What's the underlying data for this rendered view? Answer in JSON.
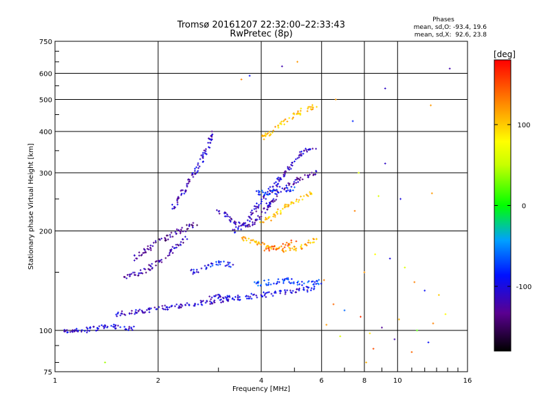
{
  "chart_data": {
    "type": "scatter",
    "title": "Tromsø 20161207 22:32:00–22:33:43",
    "subtitle": "RwPretec (8p)",
    "xlabel": "Frequency [MHz]",
    "ylabel": "Stationary phase Virtual Height [km]",
    "x_scale": "log",
    "y_scale": "log",
    "xlim": [
      1,
      16
    ],
    "ylim": [
      75,
      750
    ],
    "x_ticks": [
      1,
      2,
      4,
      6,
      8,
      10,
      16
    ],
    "x_tick_labels": [
      "1",
      "2",
      "4",
      "6",
      "8",
      "10",
      "16"
    ],
    "y_ticks": [
      75,
      100,
      200,
      300,
      400,
      500,
      600,
      750
    ],
    "y_tick_labels": [
      "75",
      "100",
      "200",
      "300",
      "400",
      "500",
      "600",
      "750"
    ],
    "grid": true,
    "phases": {
      "heading": "Phases",
      "o_line": "mean, sd,O: -93.4, 19.6",
      "x_line": "mean, sd,X:  92.6, 23.8"
    },
    "colorbar": {
      "label": "[deg]",
      "range": [
        -180,
        180
      ],
      "ticks": [
        100,
        0,
        -100
      ],
      "tick_labels": [
        "100",
        "0",
        "-100"
      ]
    },
    "traces": [
      {
        "points": [
          [
            1.05,
            100
          ],
          [
            1.2,
            100
          ],
          [
            1.3,
            101
          ],
          [
            1.45,
            104
          ],
          [
            1.55,
            102
          ],
          [
            1.7,
            101
          ]
        ],
        "phase": -105
      },
      {
        "points": [
          [
            1.5,
            112
          ],
          [
            1.8,
            114
          ],
          [
            2.2,
            118
          ],
          [
            2.5,
            120
          ],
          [
            2.8,
            122
          ],
          [
            3.2,
            124
          ]
        ],
        "phase": -110
      },
      {
        "points": [
          [
            1.6,
            145
          ],
          [
            1.8,
            150
          ],
          [
            2.0,
            160
          ],
          [
            2.2,
            175
          ],
          [
            2.4,
            190
          ]
        ],
        "phase": -120
      },
      {
        "points": [
          [
            1.7,
            165
          ],
          [
            2.0,
            185
          ],
          [
            2.3,
            200
          ],
          [
            2.6,
            210
          ]
        ],
        "phase": -130
      },
      {
        "points": [
          [
            2.2,
            230
          ],
          [
            2.4,
            270
          ],
          [
            2.6,
            310
          ],
          [
            2.8,
            360
          ],
          [
            2.9,
            400
          ]
        ],
        "phase": -110
      },
      {
        "points": [
          [
            2.5,
            150
          ],
          [
            2.7,
            155
          ],
          [
            3.0,
            160
          ],
          [
            3.3,
            158
          ]
        ],
        "phase": -90
      },
      {
        "points": [
          [
            2.8,
            128
          ],
          [
            3.2,
            125
          ],
          [
            3.6,
            126
          ],
          [
            4.0,
            128
          ],
          [
            4.6,
            130
          ],
          [
            5.2,
            132
          ],
          [
            5.8,
            135
          ]
        ],
        "phase": -100
      },
      {
        "points": [
          [
            3.0,
            230
          ],
          [
            3.3,
            215
          ],
          [
            3.6,
            205
          ],
          [
            3.9,
            215
          ],
          [
            4.2,
            240
          ],
          [
            4.6,
            270
          ],
          [
            5.2,
            290
          ],
          [
            5.8,
            300
          ]
        ],
        "phase": -120
      },
      {
        "points": [
          [
            3.3,
            200
          ],
          [
            3.6,
            210
          ],
          [
            3.9,
            240
          ],
          [
            4.3,
            270
          ],
          [
            4.7,
            300
          ],
          [
            5.3,
            350
          ],
          [
            5.8,
            360
          ]
        ],
        "phase": -110
      },
      {
        "points": [
          [
            3.8,
            262
          ],
          [
            4.2,
            260
          ],
          [
            4.6,
            265
          ],
          [
            5.0,
            270
          ]
        ],
        "phase": -80
      },
      {
        "points": [
          [
            3.5,
            190
          ],
          [
            3.8,
            185
          ],
          [
            4.2,
            180
          ],
          [
            4.6,
            175
          ],
          [
            5.2,
            178
          ],
          [
            5.8,
            190
          ]
        ],
        "phase": 110
      },
      {
        "points": [
          [
            4.0,
            210
          ],
          [
            4.4,
            225
          ],
          [
            4.8,
            240
          ],
          [
            5.2,
            250
          ],
          [
            5.6,
            260
          ]
        ],
        "phase": 100
      },
      {
        "points": [
          [
            4.1,
            175
          ],
          [
            4.6,
            180
          ],
          [
            5.0,
            185
          ]
        ],
        "phase": 140
      },
      {
        "points": [
          [
            4.0,
            380
          ],
          [
            4.6,
            420
          ],
          [
            5.2,
            460
          ],
          [
            5.8,
            480
          ]
        ],
        "phase": 105
      },
      {
        "points": [
          [
            3.8,
            138
          ],
          [
            4.3,
            140
          ],
          [
            4.8,
            142
          ],
          [
            5.3,
            138
          ],
          [
            5.9,
            140
          ]
        ],
        "phase": -70
      }
    ],
    "scattered_points": [
      [
        3.7,
        590,
        -90
      ],
      [
        4.6,
        630,
        -120
      ],
      [
        5.1,
        650,
        120
      ],
      [
        3.5,
        575,
        130
      ],
      [
        6.6,
        500,
        120
      ],
      [
        9.2,
        540,
        -110
      ],
      [
        14.2,
        620,
        -120
      ],
      [
        12.5,
        480,
        120
      ],
      [
        7.4,
        430,
        -80
      ],
      [
        7.7,
        300,
        60
      ],
      [
        9.2,
        320,
        -110
      ],
      [
        8.8,
        255,
        60
      ],
      [
        10.2,
        250,
        -100
      ],
      [
        12.6,
        260,
        120
      ],
      [
        7.5,
        230,
        130
      ],
      [
        8.0,
        150,
        120
      ],
      [
        8.6,
        170,
        80
      ],
      [
        9.5,
        165,
        -100
      ],
      [
        10.5,
        155,
        60
      ],
      [
        11.2,
        140,
        130
      ],
      [
        12.0,
        132,
        -90
      ],
      [
        13.2,
        128,
        100
      ],
      [
        6.5,
        120,
        140
      ],
      [
        7.0,
        115,
        -60
      ],
      [
        7.8,
        110,
        160
      ],
      [
        8.3,
        98,
        90
      ],
      [
        9.0,
        102,
        -130
      ],
      [
        10.1,
        108,
        110
      ],
      [
        11.4,
        100,
        20
      ],
      [
        12.7,
        105,
        130
      ],
      [
        13.8,
        112,
        80
      ],
      [
        6.2,
        104,
        120
      ],
      [
        6.8,
        96,
        60
      ],
      [
        8.5,
        88,
        150
      ],
      [
        9.8,
        94,
        -120
      ],
      [
        11.0,
        86,
        140
      ],
      [
        12.3,
        92,
        -90
      ],
      [
        1.4,
        80,
        40
      ],
      [
        8.1,
        80,
        110
      ],
      [
        6.1,
        142,
        130
      ]
    ]
  }
}
